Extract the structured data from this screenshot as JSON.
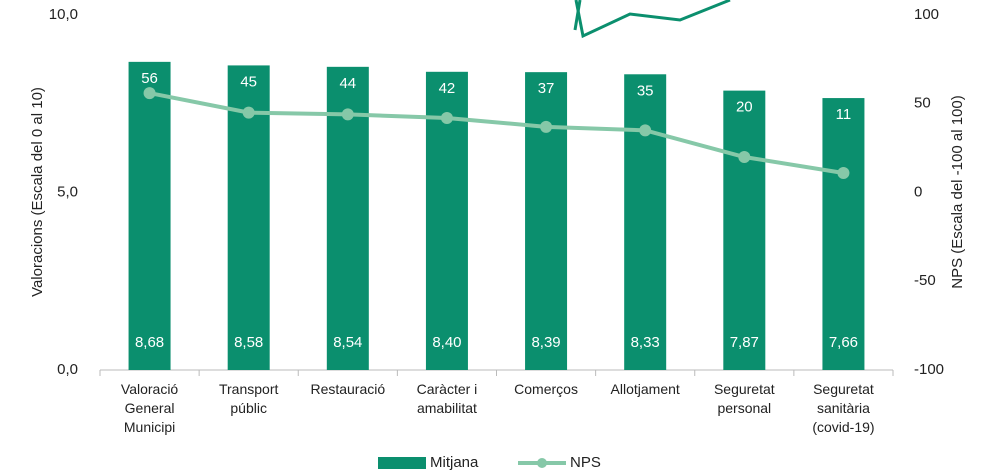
{
  "chart_data": {
    "type": "bar_line",
    "categories": [
      "Valoració General Municipi",
      "Transport públic",
      "Restauració",
      "Caràcter i amabilitat",
      "Comerços",
      "Allotjament",
      "Seguretat personal",
      "Seguretat sanitària (covid-19)"
    ],
    "series": [
      {
        "name": "Mitjana",
        "type": "bar",
        "color": "#0b8f6e",
        "values": [
          8.68,
          8.58,
          8.54,
          8.4,
          8.39,
          8.33,
          7.87,
          7.66
        ],
        "value_labels": [
          "8,68",
          "8,58",
          "8,54",
          "8,40",
          "8,39",
          "8,33",
          "7,87",
          "7,66"
        ]
      },
      {
        "name": "NPS",
        "type": "line",
        "axis": "y2",
        "color": "#86c8a8",
        "values": [
          56,
          45,
          44,
          42,
          37,
          35,
          20,
          11
        ]
      }
    ],
    "ylabel": "Valoracions (Escala  del 0 al 10)",
    "y2label": "NPS (Escala  del -100 al 100)",
    "ylim": [
      0,
      10
    ],
    "yticks": [
      {
        "value": 0,
        "label": "0,0"
      },
      {
        "value": 5,
        "label": "5,0"
      },
      {
        "value": 10,
        "label": "10,0"
      }
    ],
    "y2lim": [
      -100,
      100
    ],
    "y2ticks": [
      -100,
      -50,
      0,
      50,
      100
    ],
    "legend": "bottom"
  }
}
